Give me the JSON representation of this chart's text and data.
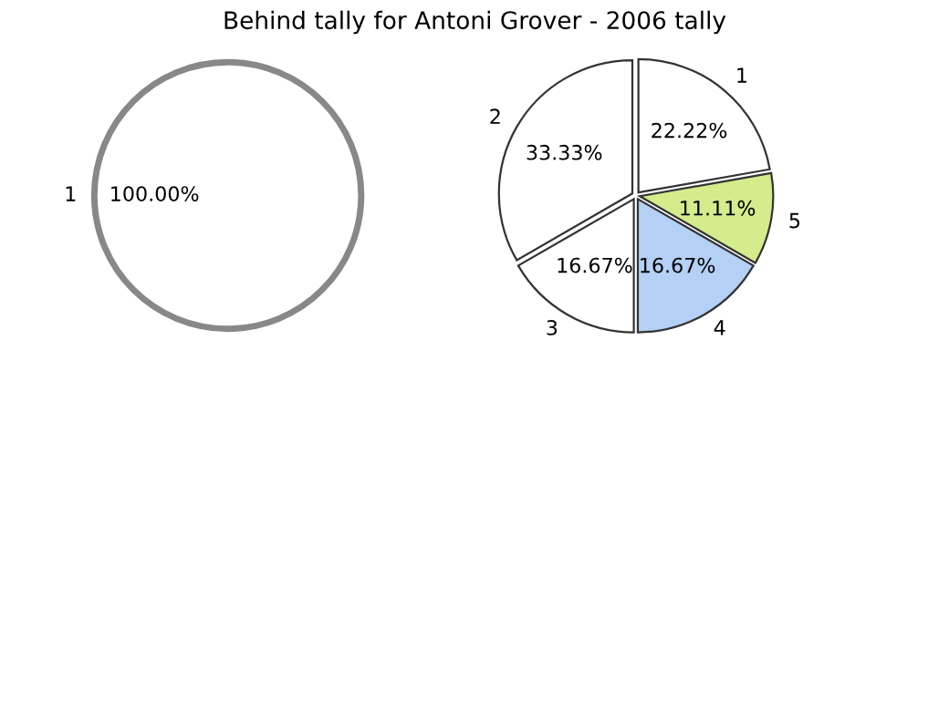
{
  "chart_data": [
    {
      "type": "pie",
      "title": "Behind tally for Antoni Grover - 2006 tally",
      "categories": [
        "1",
        "5",
        "4",
        "3",
        "2"
      ],
      "values": [
        22.22,
        11.11,
        16.67,
        16.67,
        33.33
      ],
      "colors": [
        "#ffffff",
        "#d4ec8c",
        "#b4d0f4",
        "#ffffff",
        "#ffffff"
      ],
      "value_labels": [
        "22.22%",
        "11.11%",
        "16.67%",
        "16.67%",
        "33.33%"
      ]
    },
    {
      "type": "pie",
      "categories": [
        "1"
      ],
      "values": [
        100
      ],
      "colors": [
        "#ffffff"
      ],
      "value_labels": [
        "100.00%"
      ]
    }
  ]
}
